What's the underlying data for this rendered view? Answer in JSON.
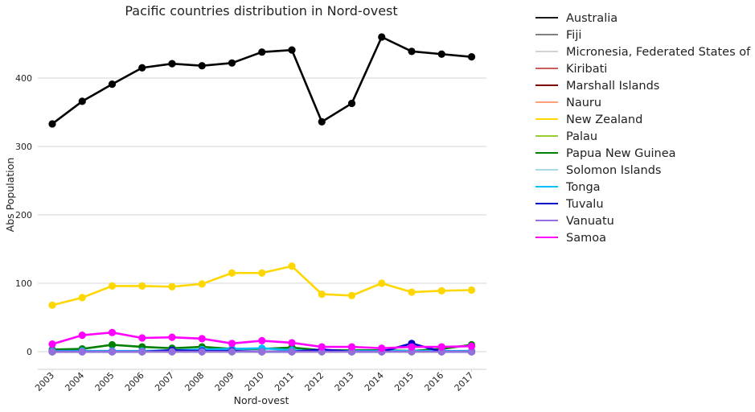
{
  "chart_data": {
    "type": "line",
    "title": "Pacific countries distribution in Nord-ovest",
    "xlabel": "Nord-ovest",
    "ylabel": "Abs Population",
    "categories": [
      "2003",
      "2004",
      "2005",
      "2006",
      "2007",
      "2008",
      "2009",
      "2010",
      "2011",
      "2012",
      "2013",
      "2014",
      "2015",
      "2016",
      "2017"
    ],
    "yticks": [
      0,
      100,
      200,
      300,
      400
    ],
    "ylim": [
      -27,
      480
    ],
    "grid": "horizontal",
    "legend_position": "outside-right",
    "series": [
      {
        "name": "Australia",
        "color": "#000000",
        "legend_color": "#1a1a1a",
        "values": [
          333,
          366,
          391,
          415,
          421,
          418,
          422,
          438,
          441,
          336,
          363,
          460,
          439,
          435,
          431
        ]
      },
      {
        "name": "Fiji",
        "color": "#808080",
        "values": [
          0,
          0,
          0,
          0,
          0,
          0,
          0,
          0,
          0,
          0,
          0,
          0,
          0,
          0,
          0
        ]
      },
      {
        "name": "Micronesia, Federated States of",
        "color": "#d3d3d3",
        "values": [
          0,
          0,
          0,
          0,
          0,
          0,
          0,
          0,
          0,
          0,
          0,
          0,
          0,
          0,
          0
        ]
      },
      {
        "name": "Kiribati",
        "color": "#cd5c5c",
        "values": [
          0,
          0,
          0,
          0,
          0,
          0,
          0,
          0,
          0,
          0,
          0,
          0,
          0,
          0,
          0
        ]
      },
      {
        "name": "Marshall Islands",
        "color": "#800000",
        "values": [
          0,
          0,
          0,
          0,
          0,
          0,
          0,
          0,
          0,
          0,
          0,
          0,
          0,
          0,
          0
        ]
      },
      {
        "name": "Nauru",
        "color": "#ffa07a",
        "values": [
          0,
          0,
          0,
          0,
          0,
          0,
          0,
          0,
          0,
          0,
          0,
          0,
          0,
          0,
          0
        ]
      },
      {
        "name": "New Zealand",
        "color": "#ffd700",
        "values": [
          68,
          79,
          96,
          96,
          95,
          99,
          115,
          115,
          125,
          84,
          82,
          100,
          87,
          89,
          90
        ]
      },
      {
        "name": "Palau",
        "color": "#9acd32",
        "values": [
          0,
          0,
          0,
          0,
          0,
          0,
          0,
          0,
          0,
          0,
          0,
          0,
          0,
          0,
          0
        ]
      },
      {
        "name": "Papua New Guinea",
        "color": "#008000",
        "values": [
          3,
          4,
          10,
          7,
          5,
          7,
          4,
          4,
          6,
          2,
          2,
          2,
          1,
          4,
          10
        ]
      },
      {
        "name": "Solomon Islands",
        "color": "#add8e6",
        "values": [
          0,
          0,
          0,
          0,
          0,
          0,
          0,
          0,
          0,
          0,
          0,
          0,
          0,
          0,
          0
        ]
      },
      {
        "name": "Tonga",
        "color": "#00bfff",
        "values": [
          1,
          1,
          1,
          1,
          2,
          3,
          4,
          5,
          2,
          1,
          1,
          1,
          1,
          1,
          1
        ]
      },
      {
        "name": "Tuvalu",
        "color": "#0000cd",
        "values": [
          0,
          0,
          0,
          0,
          2,
          1,
          1,
          0,
          0,
          3,
          0,
          0,
          12,
          0,
          0
        ]
      },
      {
        "name": "Vanuatu",
        "color": "#9370db",
        "values": [
          0,
          0,
          0,
          0,
          0,
          0,
          0,
          0,
          0,
          0,
          0,
          0,
          0,
          0,
          0
        ]
      },
      {
        "name": "Samoa",
        "color": "#ff00ff",
        "values": [
          11,
          24,
          28,
          20,
          21,
          19,
          12,
          16,
          13,
          7,
          7,
          5,
          7,
          7,
          8
        ]
      }
    ]
  }
}
